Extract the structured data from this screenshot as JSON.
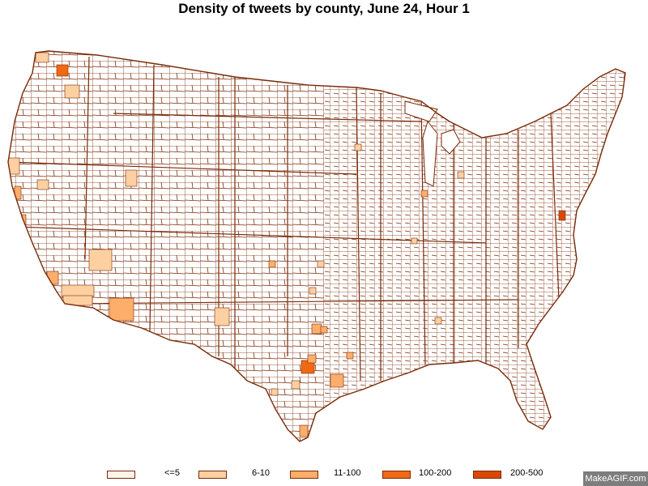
{
  "title": "Density of tweets by county, June 24, Hour 1",
  "colors": {
    "border": "#7a2a08",
    "background": "#ffffff",
    "watermark_bg": "#7d7d7d"
  },
  "legend": [
    {
      "label": "<=5",
      "color": "#fff4ea"
    },
    {
      "label": "6-10",
      "color": "#fdd0a2"
    },
    {
      "label": "11-100",
      "color": "#fdae6b"
    },
    {
      "label": "100-200",
      "color": "#f16913"
    },
    {
      "label": "200-500",
      "color": "#d94801"
    }
  ],
  "watermark": "MakeAGIF.com"
}
